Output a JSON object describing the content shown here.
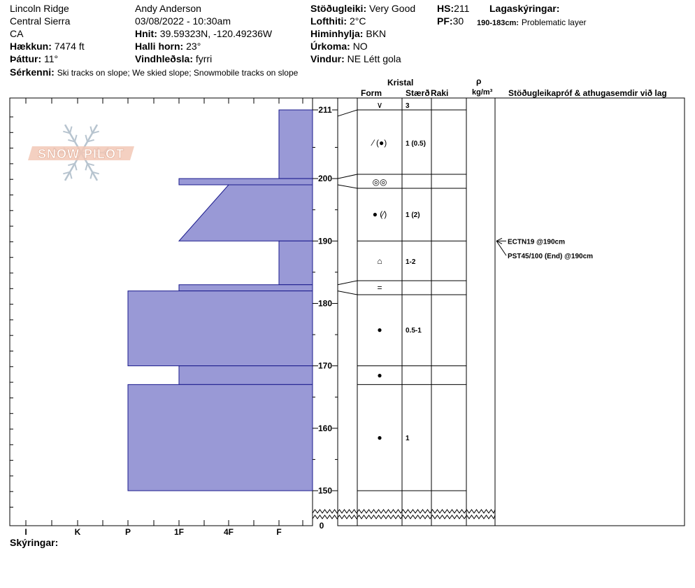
{
  "header": {
    "location": "Lincoln Ridge",
    "range": "Central Sierra",
    "state": "CA",
    "elevation_label": "Hækkun:",
    "elevation_value": "7474 ft",
    "aspect_label": "Þáttur:",
    "aspect_value": "11°",
    "features_label": "Sérkenni:",
    "features_value": "Ski tracks on slope; We skied slope; Snowmobile tracks on slope",
    "observer": "Andy Anderson",
    "datetime": "03/08/2022 - 10:30am",
    "coords_label": "Hnit:",
    "coords_value": "39.59323N, -120.49236W",
    "slope_label": "Halli horn:",
    "slope_value": "23°",
    "wind_loading_label": "Vindhleðsla:",
    "wind_loading_value": "fyrri",
    "stability_label": "Stöðugleiki:",
    "stability_value": "Very Good",
    "air_temp_label": "Lofthiti:",
    "air_temp_value": "2°C",
    "sky_label": "Himinhylja:",
    "sky_value": "BKN",
    "precip_label": "Úrkoma:",
    "precip_value": "NO",
    "wind_label": "Vindur:",
    "wind_value": "NE Létt gola",
    "hs_label": "HS:",
    "hs_value": "211",
    "pf_label": "PF:",
    "pf_value": "30",
    "layer_notes_label": "Lagaskýringar:",
    "layer_note_range": "190-183cm:",
    "layer_note_text": "Problematic layer"
  },
  "columns": {
    "crystal": "Kristal",
    "form": "Form",
    "size": "Stærð",
    "moisture": "Raki",
    "rho": "ρ",
    "density_unit": "kg/m³",
    "stability_tests": "Stöðugleikapróf & athugasemdir við lag"
  },
  "logo_text": "SNOW PILOT",
  "legend_label": "Skýringar:",
  "colors": {
    "hardness_fill": "#9999d6",
    "hardness_stroke": "#1a1a8c"
  },
  "chart_data": {
    "type": "bar",
    "orientation": "horizontal",
    "x_axis_categories": [
      "I",
      "K",
      "P",
      "1F",
      "4F",
      "F"
    ],
    "y_axis_ticks": [
      150,
      160,
      170,
      180,
      190,
      200,
      211
    ],
    "y_axis_bottom_label": "0",
    "y_axis_break": true,
    "ylim": [
      150,
      211
    ],
    "hardness_layers": [
      {
        "top": 211,
        "bottom": 200,
        "hardness_top": "F",
        "hardness_bottom": "F"
      },
      {
        "top": 200,
        "bottom": 199,
        "hardness_top": "1F",
        "hardness_bottom": "1F"
      },
      {
        "top": 199,
        "bottom": 190,
        "hardness_top": "4F",
        "hardness_bottom": "1F"
      },
      {
        "top": 190,
        "bottom": 183,
        "hardness_top": "F",
        "hardness_bottom": "F"
      },
      {
        "top": 183,
        "bottom": 182,
        "hardness_top": "1F",
        "hardness_bottom": "1F"
      },
      {
        "top": 182,
        "bottom": 170,
        "hardness_top": "P",
        "hardness_bottom": "P"
      },
      {
        "top": 170,
        "bottom": 167,
        "hardness_top": "1F",
        "hardness_bottom": "1F"
      },
      {
        "top": 167,
        "bottom": 150,
        "hardness_top": "P",
        "hardness_bottom": "P"
      }
    ],
    "crystal_layers": [
      {
        "top": 211,
        "bottom": 210,
        "form": "∨",
        "size": "3"
      },
      {
        "top": 210,
        "bottom": 200,
        "form": "⁄ (●)",
        "size": "1 (0.5)"
      },
      {
        "top": 200,
        "bottom": 199,
        "form": "◎◎",
        "size": ""
      },
      {
        "top": 199,
        "bottom": 190,
        "form": "● (⁄)",
        "size": "1 (2)"
      },
      {
        "top": 190,
        "bottom": 183,
        "form": "⌂",
        "size": "1-2"
      },
      {
        "top": 183,
        "bottom": 182,
        "form": "=",
        "size": ""
      },
      {
        "top": 182,
        "bottom": 170,
        "form": "●",
        "size": "0.5-1"
      },
      {
        "top": 170,
        "bottom": 167,
        "form": "●",
        "size": ""
      },
      {
        "top": 167,
        "bottom": 150,
        "form": "●",
        "size": "1"
      }
    ],
    "stability_tests": [
      {
        "depth": 190,
        "text": "ECTN19 @190cm"
      },
      {
        "depth": 190,
        "text": "PST45/100 (End) @190cm"
      }
    ]
  }
}
